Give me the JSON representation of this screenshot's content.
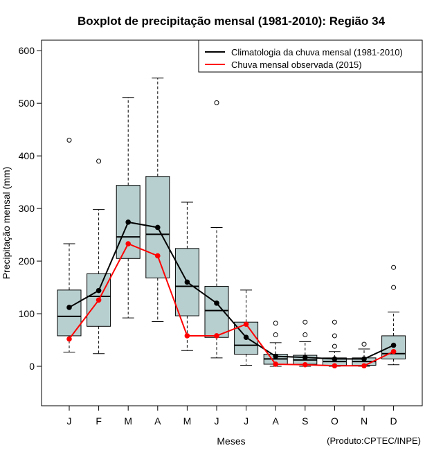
{
  "chart_data": {
    "type": "boxplot",
    "title": "Boxplot de precipitação mensal (1981-2010): Região 34",
    "xlabel": "Meses",
    "ylabel": "Precipitação mensal (mm)",
    "credit": "(Produto:CPTEC/INPE)",
    "ylim": [
      -75,
      620
    ],
    "yticks": [
      0,
      100,
      200,
      300,
      400,
      500,
      600
    ],
    "categories": [
      "J",
      "F",
      "M",
      "A",
      "M",
      "J",
      "J",
      "A",
      "S",
      "O",
      "N",
      "D"
    ],
    "box_color": "#b8cfcf",
    "boxes": [
      {
        "min": 27,
        "q1": 58,
        "median": 95,
        "q3": 145,
        "max": 233,
        "outliers": [
          430
        ]
      },
      {
        "min": 24,
        "q1": 76,
        "median": 133,
        "q3": 176,
        "max": 298,
        "outliers": [
          390
        ]
      },
      {
        "min": 92,
        "q1": 205,
        "median": 246,
        "q3": 344,
        "max": 511,
        "outliers": []
      },
      {
        "min": 85,
        "q1": 168,
        "median": 251,
        "q3": 361,
        "max": 548,
        "outliers": []
      },
      {
        "min": 30,
        "q1": 96,
        "median": 152,
        "q3": 224,
        "max": 312,
        "outliers": []
      },
      {
        "min": 16,
        "q1": 55,
        "median": 106,
        "q3": 152,
        "max": 264,
        "outliers": [
          501
        ]
      },
      {
        "min": 2,
        "q1": 23,
        "median": 40,
        "q3": 84,
        "max": 145,
        "outliers": []
      },
      {
        "min": 0,
        "q1": 4,
        "median": 14,
        "q3": 23,
        "max": 45,
        "outliers": [
          60,
          82
        ]
      },
      {
        "min": 0,
        "q1": 4,
        "median": 12,
        "q3": 21,
        "max": 47,
        "outliers": [
          60,
          84
        ]
      },
      {
        "min": 0,
        "q1": 2,
        "median": 9,
        "q3": 16,
        "max": 28,
        "outliers": [
          38,
          58,
          84
        ]
      },
      {
        "min": 0,
        "q1": 2,
        "median": 9,
        "q3": 16,
        "max": 33,
        "outliers": [
          42
        ]
      },
      {
        "min": 3,
        "q1": 14,
        "median": 24,
        "q3": 58,
        "max": 103,
        "outliers": [
          150,
          188
        ]
      }
    ],
    "series": [
      {
        "name": "Climatologia da chuva mensal (1981-2010)",
        "color": "#000000",
        "values": [
          112,
          144,
          274,
          264,
          160,
          120,
          55,
          19,
          17,
          14,
          14,
          40
        ]
      },
      {
        "name": "Chuva mensal observada (2015)",
        "color": "#ff0000",
        "values": [
          52,
          126,
          233,
          210,
          58,
          58,
          80,
          4,
          3,
          1,
          1,
          28
        ]
      }
    ]
  }
}
